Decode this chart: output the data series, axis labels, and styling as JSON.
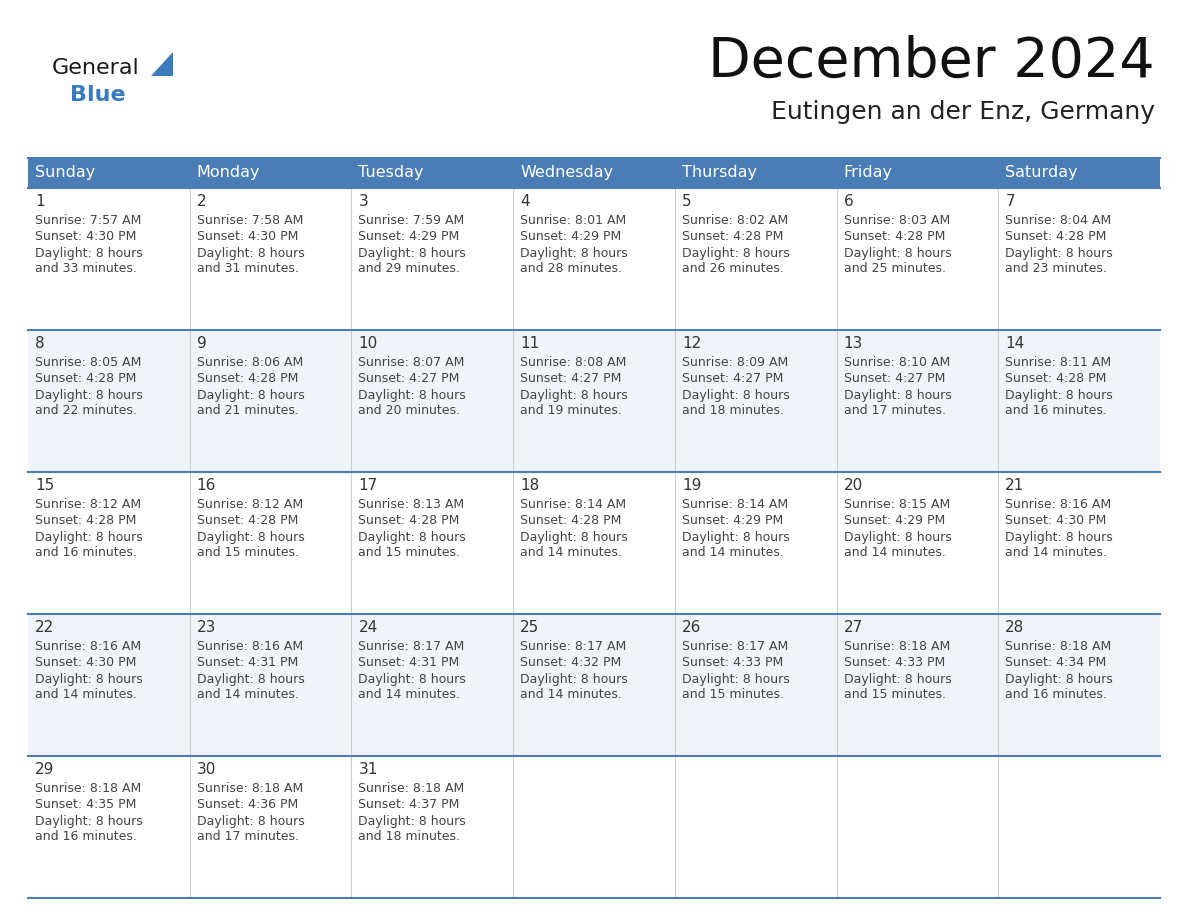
{
  "title": "December 2024",
  "subtitle": "Eutingen an der Enz, Germany",
  "header_color": "#4a7db5",
  "header_text_color": "#FFFFFF",
  "cell_bg_white": "#FFFFFF",
  "cell_bg_gray": "#f0f4f8",
  "cell_text_color": "#444444",
  "day_num_color": "#333333",
  "border_color": "#4a7db5",
  "row_line_color": "#4a7db5",
  "col_line_color": "#cccccc",
  "days_of_week": [
    "Sunday",
    "Monday",
    "Tuesday",
    "Wednesday",
    "Thursday",
    "Friday",
    "Saturday"
  ],
  "weeks": [
    [
      {
        "day": 1,
        "sunrise": "7:57 AM",
        "sunset": "4:30 PM",
        "daylight_h": "8 hours",
        "daylight_m": "33 minutes."
      },
      {
        "day": 2,
        "sunrise": "7:58 AM",
        "sunset": "4:30 PM",
        "daylight_h": "8 hours",
        "daylight_m": "31 minutes."
      },
      {
        "day": 3,
        "sunrise": "7:59 AM",
        "sunset": "4:29 PM",
        "daylight_h": "8 hours",
        "daylight_m": "29 minutes."
      },
      {
        "day": 4,
        "sunrise": "8:01 AM",
        "sunset": "4:29 PM",
        "daylight_h": "8 hours",
        "daylight_m": "28 minutes."
      },
      {
        "day": 5,
        "sunrise": "8:02 AM",
        "sunset": "4:28 PM",
        "daylight_h": "8 hours",
        "daylight_m": "26 minutes."
      },
      {
        "day": 6,
        "sunrise": "8:03 AM",
        "sunset": "4:28 PM",
        "daylight_h": "8 hours",
        "daylight_m": "25 minutes."
      },
      {
        "day": 7,
        "sunrise": "8:04 AM",
        "sunset": "4:28 PM",
        "daylight_h": "8 hours",
        "daylight_m": "23 minutes."
      }
    ],
    [
      {
        "day": 8,
        "sunrise": "8:05 AM",
        "sunset": "4:28 PM",
        "daylight_h": "8 hours",
        "daylight_m": "22 minutes."
      },
      {
        "day": 9,
        "sunrise": "8:06 AM",
        "sunset": "4:28 PM",
        "daylight_h": "8 hours",
        "daylight_m": "21 minutes."
      },
      {
        "day": 10,
        "sunrise": "8:07 AM",
        "sunset": "4:27 PM",
        "daylight_h": "8 hours",
        "daylight_m": "20 minutes."
      },
      {
        "day": 11,
        "sunrise": "8:08 AM",
        "sunset": "4:27 PM",
        "daylight_h": "8 hours",
        "daylight_m": "19 minutes."
      },
      {
        "day": 12,
        "sunrise": "8:09 AM",
        "sunset": "4:27 PM",
        "daylight_h": "8 hours",
        "daylight_m": "18 minutes."
      },
      {
        "day": 13,
        "sunrise": "8:10 AM",
        "sunset": "4:27 PM",
        "daylight_h": "8 hours",
        "daylight_m": "17 minutes."
      },
      {
        "day": 14,
        "sunrise": "8:11 AM",
        "sunset": "4:28 PM",
        "daylight_h": "8 hours",
        "daylight_m": "16 minutes."
      }
    ],
    [
      {
        "day": 15,
        "sunrise": "8:12 AM",
        "sunset": "4:28 PM",
        "daylight_h": "8 hours",
        "daylight_m": "16 minutes."
      },
      {
        "day": 16,
        "sunrise": "8:12 AM",
        "sunset": "4:28 PM",
        "daylight_h": "8 hours",
        "daylight_m": "15 minutes."
      },
      {
        "day": 17,
        "sunrise": "8:13 AM",
        "sunset": "4:28 PM",
        "daylight_h": "8 hours",
        "daylight_m": "15 minutes."
      },
      {
        "day": 18,
        "sunrise": "8:14 AM",
        "sunset": "4:28 PM",
        "daylight_h": "8 hours",
        "daylight_m": "14 minutes."
      },
      {
        "day": 19,
        "sunrise": "8:14 AM",
        "sunset": "4:29 PM",
        "daylight_h": "8 hours",
        "daylight_m": "14 minutes."
      },
      {
        "day": 20,
        "sunrise": "8:15 AM",
        "sunset": "4:29 PM",
        "daylight_h": "8 hours",
        "daylight_m": "14 minutes."
      },
      {
        "day": 21,
        "sunrise": "8:16 AM",
        "sunset": "4:30 PM",
        "daylight_h": "8 hours",
        "daylight_m": "14 minutes."
      }
    ],
    [
      {
        "day": 22,
        "sunrise": "8:16 AM",
        "sunset": "4:30 PM",
        "daylight_h": "8 hours",
        "daylight_m": "14 minutes."
      },
      {
        "day": 23,
        "sunrise": "8:16 AM",
        "sunset": "4:31 PM",
        "daylight_h": "8 hours",
        "daylight_m": "14 minutes."
      },
      {
        "day": 24,
        "sunrise": "8:17 AM",
        "sunset": "4:31 PM",
        "daylight_h": "8 hours",
        "daylight_m": "14 minutes."
      },
      {
        "day": 25,
        "sunrise": "8:17 AM",
        "sunset": "4:32 PM",
        "daylight_h": "8 hours",
        "daylight_m": "14 minutes."
      },
      {
        "day": 26,
        "sunrise": "8:17 AM",
        "sunset": "4:33 PM",
        "daylight_h": "8 hours",
        "daylight_m": "15 minutes."
      },
      {
        "day": 27,
        "sunrise": "8:18 AM",
        "sunset": "4:33 PM",
        "daylight_h": "8 hours",
        "daylight_m": "15 minutes."
      },
      {
        "day": 28,
        "sunrise": "8:18 AM",
        "sunset": "4:34 PM",
        "daylight_h": "8 hours",
        "daylight_m": "16 minutes."
      }
    ],
    [
      {
        "day": 29,
        "sunrise": "8:18 AM",
        "sunset": "4:35 PM",
        "daylight_h": "8 hours",
        "daylight_m": "16 minutes."
      },
      {
        "day": 30,
        "sunrise": "8:18 AM",
        "sunset": "4:36 PM",
        "daylight_h": "8 hours",
        "daylight_m": "17 minutes."
      },
      {
        "day": 31,
        "sunrise": "8:18 AM",
        "sunset": "4:37 PM",
        "daylight_h": "8 hours",
        "daylight_m": "18 minutes."
      },
      null,
      null,
      null,
      null
    ]
  ],
  "logo_text_general": "General",
  "logo_text_blue": "Blue",
  "logo_color_general": "#1a1a1a",
  "logo_color_blue": "#3a7abf",
  "logo_triangle_color": "#3a7abf",
  "title_fontsize": 40,
  "subtitle_fontsize": 18,
  "header_fontsize": 11.5,
  "daynum_fontsize": 11,
  "cell_fontsize": 9
}
